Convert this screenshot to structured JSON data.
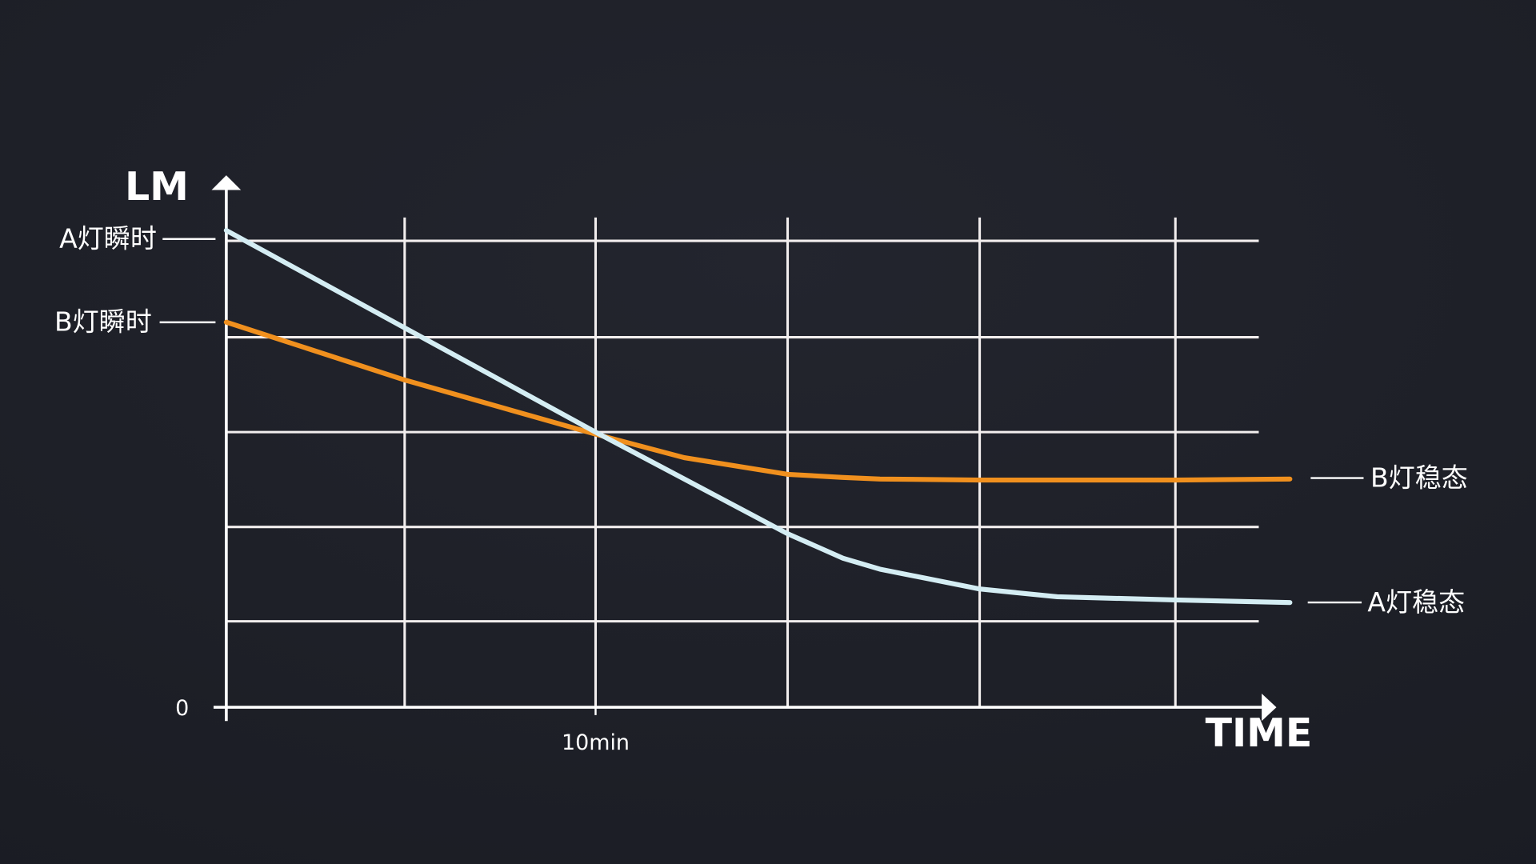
{
  "chart_data": {
    "type": "line",
    "y_label": "LM",
    "x_label": "TIME",
    "x": [
      0,
      4.83,
      10,
      12.4,
      15.2,
      16.7,
      17.7,
      20.4,
      22.5,
      25.7,
      28.8
    ],
    "series": [
      {
        "name": "A",
        "color": "#d4edf3",
        "values": [
          91.5,
          72.8,
          52.8,
          43.8,
          33.3,
          28.6,
          26.5,
          22.7,
          21.2,
          20.6,
          20.1
        ]
      },
      {
        "name": "B",
        "color": "#f0901e",
        "values": [
          73.9,
          62.8,
          52.4,
          47.9,
          44.7,
          44.1,
          43.8,
          43.6,
          43.6,
          43.6,
          43.8
        ]
      }
    ],
    "annotations": [
      "A灯瞬时",
      "B灯瞬时",
      "B灯稳态",
      "A灯稳态"
    ],
    "xlim": [
      0,
      30
    ],
    "ylim": [
      0,
      100
    ],
    "xticks": [
      {
        "value": 10,
        "label": "10min"
      }
    ],
    "yticks": [
      0
    ],
    "xgrid": [
      4.83,
      10,
      15.2,
      20.4,
      25.7
    ],
    "ygrid": [
      16.5,
      34.6,
      52.8,
      71,
      89.5
    ],
    "grid": true
  }
}
